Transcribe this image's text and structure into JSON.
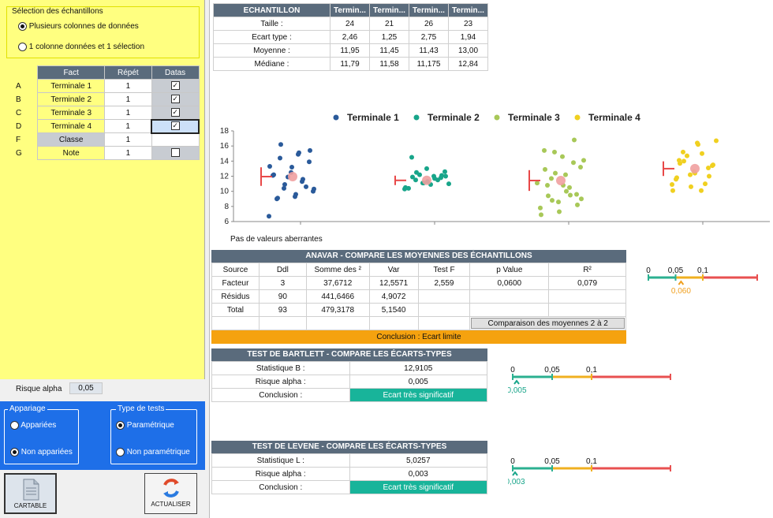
{
  "left": {
    "group_title": "Sélection des échantillons",
    "radio1": "Plusieurs colonnes de données",
    "radio2": "1 colonne données et 1 sélection",
    "table_headers": [
      "Fact",
      "Répét",
      "Datas"
    ],
    "rows": [
      {
        "letter": "A",
        "fact": "Terminale 1",
        "repet": "1",
        "checked": true
      },
      {
        "letter": "B",
        "fact": "Terminale 2",
        "repet": "1",
        "checked": true
      },
      {
        "letter": "C",
        "fact": "Terminale 3",
        "repet": "1",
        "checked": true
      },
      {
        "letter": "D",
        "fact": "Terminale 4",
        "repet": "1",
        "checked": true
      },
      {
        "letter": "F",
        "fact": "Classe",
        "repet": "1",
        "checked": null
      },
      {
        "letter": "G",
        "fact": "Note",
        "repet": "1",
        "checked": false
      }
    ],
    "alpha_label": "Risque alpha",
    "alpha_value": "0,05",
    "appariage_title": "Appariage",
    "appariees": "Appariées",
    "non_appariees": "Non appariées",
    "type_tests_title": "Type de tests",
    "parametrique": "Paramétrique",
    "non_parametrique": "Non paramétrique",
    "btn_cartable": "CARTABLE",
    "btn_actualiser": "ACTUALISER"
  },
  "summary": {
    "headers": [
      "ECHANTILLON",
      "Termin...",
      "Termin...",
      "Termin...",
      "Termin..."
    ],
    "rows": [
      [
        "Taille :",
        "24",
        "21",
        "26",
        "23"
      ],
      [
        "Ecart type :",
        "2,46",
        "1,25",
        "2,75",
        "1,94"
      ],
      [
        "Moyenne :",
        "11,95",
        "11,45",
        "11,43",
        "13,00"
      ],
      [
        "Médiane :",
        "11,79",
        "11,58",
        "11,175",
        "12,84"
      ]
    ]
  },
  "chart_data": {
    "type": "scatter",
    "series": [
      {
        "name": "Terminale 1",
        "color": "#2a5a9a",
        "mean": 11.95,
        "sd": 2.46,
        "values": [
          6.7,
          14.9,
          14.4,
          13.9,
          12.5,
          12.1,
          11.3,
          10.4,
          10.0,
          9.3,
          9.0,
          10.6,
          11.9,
          13.3,
          15.1,
          16.2,
          15.4,
          13.2,
          12.2,
          11.6,
          10.9,
          10.3,
          9.6,
          9.1
        ]
      },
      {
        "name": "Terminale 2",
        "color": "#18a58a",
        "mean": 11.45,
        "sd": 1.25,
        "values": [
          14.5,
          11.8,
          11.1,
          10.3,
          12.0,
          11.5,
          12.6,
          13.0,
          10.4,
          11.5,
          12.2,
          11.0,
          10.9,
          11.9,
          12.1,
          11.1,
          10.5,
          11.7,
          12.5,
          12.0,
          11.3
        ]
      },
      {
        "name": "Terminale 3",
        "color": "#a8c858",
        "mean": 11.43,
        "sd": 2.75,
        "values": [
          15.2,
          14.1,
          12.2,
          10.8,
          9.6,
          8.6,
          7.8,
          10.5,
          11.7,
          13.2,
          14.6,
          15.4,
          13.8,
          12.4,
          11.1,
          10.0,
          9.4,
          8.2,
          7.3,
          6.9,
          9.5,
          8.8,
          9.0,
          10.8,
          12.9,
          16.8
        ]
      },
      {
        "name": "Terminale 4",
        "color": "#f0d020",
        "mean": 13.0,
        "sd": 1.94,
        "values": [
          16.4,
          14.1,
          13.1,
          12.2,
          10.9,
          10.1,
          15.2,
          13.4,
          12.6,
          11.6,
          11.0,
          14.7,
          16.7,
          16.2,
          13.7,
          12.0,
          10.6,
          10.1,
          15.0,
          14.0,
          13.5,
          12.4,
          11.8
        ]
      }
    ],
    "ylim": [
      6,
      18
    ],
    "yticks": [
      "6",
      "8",
      "10",
      "12",
      "14",
      "16",
      "18"
    ],
    "mean_color": "#f0a0a0",
    "sd_color": "#e84848",
    "legend_position": "top"
  },
  "note_outliers": "Pas de valeurs aberrantes",
  "anova": {
    "title": "ANAVAR - COMPARE LES MOYENNES DES ÉCHANTILLONS",
    "headers": [
      "Source",
      "Ddl",
      "Somme des ²",
      "Var",
      "Test F",
      "p Value",
      "R²"
    ],
    "rows": [
      [
        "Facteur",
        "3",
        "37,6712",
        "12,5571",
        "2,559",
        "0,0600",
        "0,079"
      ],
      [
        "Résidus",
        "90",
        "441,6466",
        "4,9072",
        "",
        "",
        ""
      ],
      [
        "Total",
        "93",
        "479,3178",
        "5,1540",
        "",
        "",
        ""
      ]
    ],
    "compare_button": "Comparaison des moyennes 2 à 2",
    "conclusion": "Conclusion : Ecart limite",
    "scale_labels": [
      "0",
      "0,05",
      "0,1"
    ],
    "marker": "0,060",
    "marker_value": 0.06,
    "marker_color": "#f0a020"
  },
  "bartlett": {
    "title": "TEST DE BARTLETT - COMPARE LES ÉCARTS-TYPES",
    "rows": [
      [
        "Statistique B :",
        "12,9105"
      ],
      [
        "Risque alpha :",
        "0,005"
      ]
    ],
    "conclusion_label": "Conclusion :",
    "conclusion": "Ecart très significatif",
    "scale_labels": [
      "0",
      "0,05",
      "0,1"
    ],
    "marker": "0,005",
    "marker_value": 0.005,
    "marker_color": "#18a58a"
  },
  "levene": {
    "title": "TEST DE LEVENE - COMPARE LES ÉCARTS-TYPES",
    "rows": [
      [
        "Statistique L :",
        "5,0257"
      ],
      [
        "Risque alpha :",
        "0,003"
      ]
    ],
    "conclusion_label": "Conclusion :",
    "conclusion": "Ecart très significatif",
    "scale_labels": [
      "0",
      "0,05",
      "0,1"
    ],
    "marker": "0,003",
    "marker_value": 0.003,
    "marker_color": "#18a58a"
  },
  "colors": {
    "header": "#5a6b7c",
    "conclusion_orange": "#f5a20f",
    "conclusion_green": "#18b49a",
    "scale_green": "#2bb090",
    "scale_yellow": "#f0b020",
    "scale_red": "#e85050"
  }
}
